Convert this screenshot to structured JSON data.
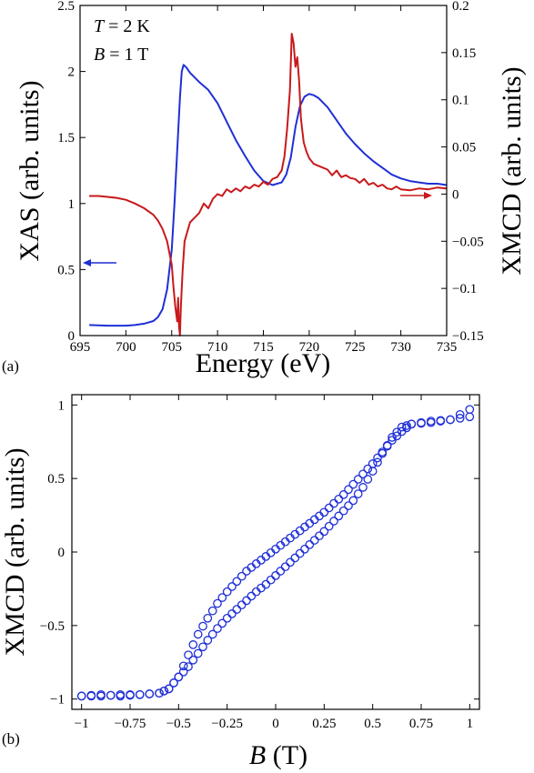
{
  "figure": {
    "panels": [
      "(a)",
      "(b)"
    ]
  },
  "chart_data": [
    {
      "type": "line",
      "panel_label": "(a)",
      "annotations": {
        "temperature": {
          "italic": "T",
          "rest": " = 2 K"
        },
        "field": {
          "italic": "B",
          "rest": " = 1 T"
        }
      },
      "xlabel": "Energy (eV)",
      "ylabel_left": "XAS (arb. units)",
      "ylabel_right": "XMCD (arb. units)",
      "xlim": [
        695,
        735
      ],
      "ylim_left": [
        0,
        2.5
      ],
      "ylim_right": [
        -0.15,
        0.2
      ],
      "x_ticks": [
        695,
        700,
        705,
        710,
        715,
        720,
        725,
        730,
        735
      ],
      "y_left_ticks": [
        0,
        0.5,
        1,
        1.5,
        2,
        2.5
      ],
      "y_right_ticks": [
        -0.15,
        -0.1,
        -0.05,
        0,
        0.05,
        0.1,
        0.15,
        0.2
      ],
      "grid": false,
      "arrows": {
        "XAS": "points-left (blue)",
        "XMCD": "points-right (red)"
      },
      "colors": {
        "XAS": "#1f2fd6",
        "XMCD": "#c8191c"
      },
      "series": [
        {
          "axis": "left",
          "x": [
            696,
            698,
            700,
            701,
            702,
            703,
            703.5,
            704,
            704.5,
            705,
            705.3,
            705.6,
            705.9,
            706.1,
            706.3,
            706.6,
            707,
            708,
            709,
            710,
            711,
            712,
            713,
            714,
            715,
            716,
            717,
            717.5,
            718,
            718.5,
            719,
            719.5,
            720,
            720.5,
            721,
            722,
            723,
            724,
            725,
            726,
            727,
            728,
            729,
            730,
            731,
            732,
            733,
            734,
            735
          ],
          "values": [
            0.08,
            0.075,
            0.075,
            0.08,
            0.09,
            0.11,
            0.14,
            0.2,
            0.35,
            0.65,
            1.0,
            1.4,
            1.8,
            2.0,
            2.05,
            2.03,
            1.99,
            1.92,
            1.86,
            1.76,
            1.62,
            1.48,
            1.36,
            1.25,
            1.17,
            1.14,
            1.16,
            1.22,
            1.35,
            1.58,
            1.74,
            1.81,
            1.83,
            1.82,
            1.8,
            1.73,
            1.63,
            1.53,
            1.45,
            1.38,
            1.32,
            1.27,
            1.22,
            1.19,
            1.17,
            1.16,
            1.15,
            1.15,
            1.14
          ]
        },
        {
          "axis": "right",
          "x": [
            696,
            697,
            698,
            699,
            700,
            701,
            702,
            703,
            703.5,
            704,
            704.5,
            705,
            705.2,
            705.4,
            705.6,
            705.7,
            705.8,
            705.9,
            706.0,
            706.2,
            706.4,
            706.7,
            707,
            707.5,
            708,
            708.5,
            709,
            709.5,
            710,
            710.5,
            711,
            711.5,
            712,
            712.5,
            713,
            713.5,
            714,
            714.5,
            715,
            715.5,
            716,
            716.5,
            717,
            717.3,
            717.6,
            717.9,
            718.1,
            718.3,
            718.5,
            718.7,
            718.9,
            719.1,
            719.4,
            719.7,
            720,
            720.5,
            721,
            721.5,
            722,
            722.5,
            723,
            723.5,
            724,
            724.5,
            725,
            725.5,
            726,
            726.5,
            727,
            727.5,
            728,
            728.5,
            729,
            729.5,
            730,
            731,
            732,
            733,
            734,
            735
          ],
          "values": [
            -0.002,
            -0.002,
            -0.003,
            -0.004,
            -0.006,
            -0.01,
            -0.015,
            -0.022,
            -0.028,
            -0.037,
            -0.05,
            -0.075,
            -0.1,
            -0.12,
            -0.135,
            -0.11,
            -0.14,
            -0.15,
            -0.12,
            -0.08,
            -0.05,
            -0.04,
            -0.03,
            -0.025,
            -0.02,
            -0.01,
            -0.015,
            -0.005,
            0.0,
            -0.002,
            0.005,
            0.002,
            0.006,
            0.003,
            0.008,
            0.006,
            0.01,
            0.008,
            0.013,
            0.01,
            0.016,
            0.018,
            0.025,
            0.04,
            0.07,
            0.11,
            0.17,
            0.16,
            0.135,
            0.145,
            0.12,
            0.08,
            0.055,
            0.045,
            0.038,
            0.032,
            0.03,
            0.028,
            0.026,
            0.02,
            0.025,
            0.018,
            0.02,
            0.017,
            0.016,
            0.012,
            0.016,
            0.01,
            0.012,
            0.008,
            0.01,
            0.006,
            0.005,
            0.008,
            0.005,
            0.004,
            0.006,
            0.005,
            0.007,
            0.006
          ]
        }
      ]
    },
    {
      "type": "scatter",
      "panel_label": "(b)",
      "xlabel": {
        "italic": "B",
        "rest": " (T)"
      },
      "ylabel": "XMCD (arb. units)",
      "xlim": [
        -1.05,
        1.05
      ],
      "ylim": [
        -1.07,
        1.07
      ],
      "x_ticks": [
        -1,
        -0.75,
        -0.5,
        -0.25,
        0,
        0.25,
        0.5,
        0.75,
        1
      ],
      "x_tick_labels": [
        "−1",
        "−0.75",
        "−0.5",
        "−0.25",
        "0",
        "0.25",
        "0.5",
        "0.75",
        "1"
      ],
      "y_ticks": [
        -1,
        -0.5,
        0,
        0.5,
        1
      ],
      "y_tick_labels": [
        "−1",
        "−0.5",
        "0",
        "0.5",
        "1"
      ],
      "grid": false,
      "marker": "open-circle",
      "color": "#1f2fd6",
      "series": [
        {
          "x": [
            1.0,
            0.9,
            0.8,
            0.7,
            0.65,
            0.6,
            0.55,
            0.5,
            0.45,
            0.4,
            0.35,
            0.3,
            0.25,
            0.2,
            0.15,
            0.1,
            0.05,
            0.0,
            -0.05,
            -0.1,
            -0.15,
            -0.2,
            -0.25,
            -0.3,
            -0.35,
            -0.4,
            -0.45,
            -0.5,
            -0.55,
            -0.6,
            -0.7,
            -0.8,
            -0.9,
            -1.0
          ],
          "values": [
            0.97,
            0.9,
            0.89,
            0.87,
            0.82,
            0.76,
            0.68,
            0.6,
            0.53,
            0.46,
            0.39,
            0.33,
            0.27,
            0.22,
            0.17,
            0.12,
            0.07,
            0.02,
            -0.03,
            -0.08,
            -0.13,
            -0.2,
            -0.27,
            -0.35,
            -0.45,
            -0.56,
            -0.7,
            -0.85,
            -0.93,
            -0.96,
            -0.97,
            -0.98,
            -0.97,
            -0.98
          ]
        },
        {
          "x": [
            -1.0,
            -0.9,
            -0.8,
            -0.7,
            -0.6,
            -0.55,
            -0.5,
            -0.45,
            -0.4,
            -0.35,
            -0.3,
            -0.25,
            -0.2,
            -0.15,
            -0.1,
            -0.05,
            0.0,
            0.05,
            0.1,
            0.15,
            0.2,
            0.25,
            0.3,
            0.35,
            0.4,
            0.45,
            0.5,
            0.55,
            0.6,
            0.65,
            0.7,
            0.8,
            0.9,
            1.0
          ],
          "values": [
            -0.98,
            -0.98,
            -0.97,
            -0.97,
            -0.96,
            -0.93,
            -0.85,
            -0.78,
            -0.69,
            -0.6,
            -0.52,
            -0.45,
            -0.39,
            -0.33,
            -0.27,
            -0.22,
            -0.16,
            -0.1,
            -0.04,
            0.02,
            0.08,
            0.14,
            0.21,
            0.28,
            0.35,
            0.44,
            0.55,
            0.67,
            0.78,
            0.85,
            0.87,
            0.88,
            0.9,
            0.92
          ]
        }
      ]
    }
  ]
}
